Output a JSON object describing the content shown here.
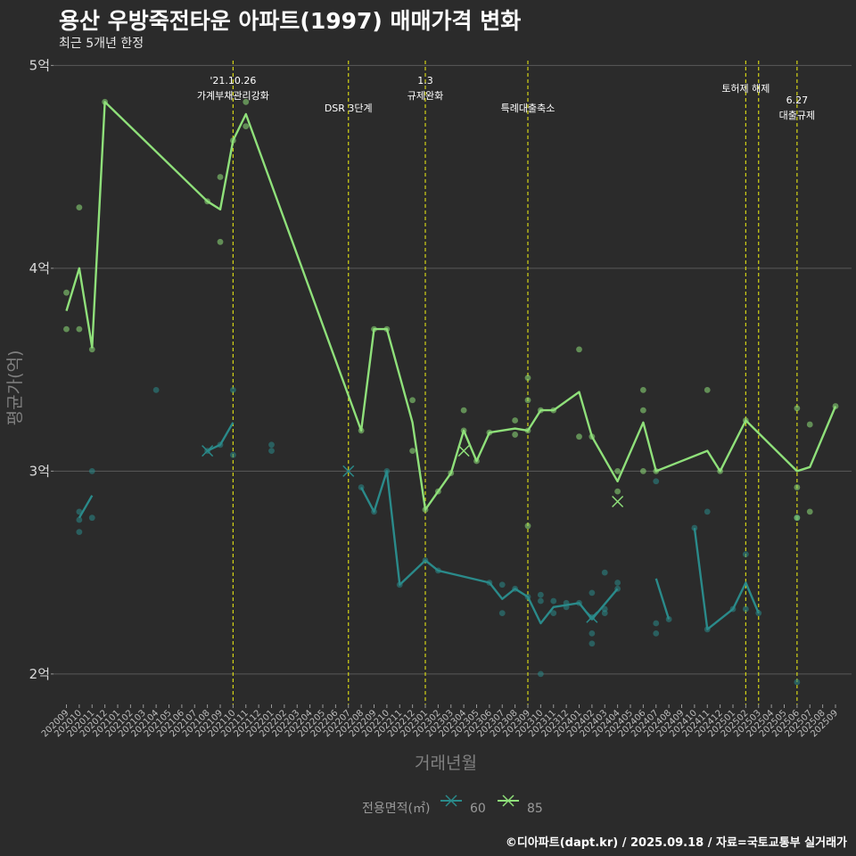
{
  "header": {
    "title": "용산 우방죽전타운 아파트(1997) 매매가격 변화",
    "subtitle": "최근 5개년 한정"
  },
  "footer": {
    "caption": "©디아파트(dapt.kr) / 2025.09.18 / 자료=국토교통부 실거래가"
  },
  "colors": {
    "background": "#2b2b2b",
    "grid": "#5a5a5a",
    "vline": "#d4d416",
    "s60": "#2a8a8a",
    "s85": "#8fe07a"
  },
  "chart_data": {
    "type": "line",
    "xlabel": "거래년월",
    "ylabel": "평균가(억)",
    "ylim": [
      1.85,
      5.05
    ],
    "y_ticks": [
      {
        "value": 2,
        "label": "2억"
      },
      {
        "value": 3,
        "label": "3억"
      },
      {
        "value": 4,
        "label": "4억"
      },
      {
        "value": 5,
        "label": "5억"
      }
    ],
    "x_start": "202009",
    "x_end": "202509",
    "categories": [
      "202009",
      "202010",
      "202011",
      "202012",
      "202101",
      "202102",
      "202103",
      "202104",
      "202105",
      "202106",
      "202107",
      "202108",
      "202109",
      "202110",
      "202111",
      "202112",
      "202201",
      "202202",
      "202203",
      "202204",
      "202205",
      "202206",
      "202207",
      "202208",
      "202209",
      "202210",
      "202211",
      "202212",
      "202301",
      "202302",
      "202303",
      "202304",
      "202305",
      "202306",
      "202307",
      "202308",
      "202309",
      "202310",
      "202311",
      "202312",
      "202401",
      "202402",
      "202403",
      "202404",
      "202405",
      "202406",
      "202407",
      "202408",
      "202409",
      "202410",
      "202411",
      "202412",
      "202501",
      "202502",
      "202503",
      "202504",
      "202505",
      "202506",
      "202507",
      "202508",
      "202509"
    ],
    "legend": {
      "title": "전용면적(㎡)",
      "entries": [
        "60",
        "85"
      ]
    },
    "annotations": [
      {
        "month": "202110",
        "lines": [
          "'21.10.26",
          "가계부채관리강화"
        ],
        "pos": "top"
      },
      {
        "month": "202207",
        "lines": [
          "DSR 3단계"
        ],
        "pos": "mid"
      },
      {
        "month": "202301",
        "lines": [
          "1.3",
          "규제완화"
        ],
        "pos": "top"
      },
      {
        "month": "202309",
        "lines": [
          "특례대출축소"
        ],
        "pos": "mid"
      },
      {
        "month": "202502",
        "lines": [
          "토허제 해제"
        ],
        "pos": "top2"
      },
      {
        "month": "202503",
        "lines": [],
        "pos": "none"
      },
      {
        "month": "202506",
        "lines": [
          "6.27",
          "대출규제"
        ],
        "pos": "low"
      }
    ],
    "series": [
      {
        "name": "60",
        "segments": [
          [
            [
              "202010",
              2.77
            ],
            [
              "202011",
              2.88
            ]
          ],
          [
            [
              "202108",
              3.1
            ],
            [
              "202109",
              3.13
            ],
            [
              "202110",
              3.24
            ]
          ],
          [
            [
              "202208",
              2.92
            ],
            [
              "202209",
              2.8
            ],
            [
              "202210",
              3.0
            ],
            [
              "202211",
              2.44
            ],
            [
              "202301",
              2.56
            ],
            [
              "202302",
              2.51
            ],
            [
              "202306",
              2.45
            ],
            [
              "202307",
              2.37
            ],
            [
              "202308",
              2.42
            ],
            [
              "202309",
              2.38
            ],
            [
              "202310",
              2.25
            ],
            [
              "202311",
              2.33
            ],
            [
              "202401",
              2.35
            ],
            [
              "202402",
              2.27
            ],
            [
              "202404",
              2.42
            ]
          ],
          [
            [
              "202407",
              2.47
            ],
            [
              "202408",
              2.27
            ]
          ],
          [
            [
              "202410",
              2.72
            ],
            [
              "202411",
              2.22
            ],
            [
              "202501",
              2.32
            ],
            [
              "202502",
              2.45
            ],
            [
              "202503",
              2.3
            ]
          ]
        ],
        "points": [
          [
            "202010",
            2.8
          ],
          [
            "202010",
            2.76
          ],
          [
            "202010",
            2.7
          ],
          [
            "202011",
            3.0
          ],
          [
            "202011",
            2.77
          ],
          [
            "202104",
            3.4
          ],
          [
            "202108",
            3.1
          ],
          [
            "202109",
            3.13
          ],
          [
            "202110",
            3.4
          ],
          [
            "202110",
            3.08
          ],
          [
            "202201",
            3.1
          ],
          [
            "202201",
            3.13
          ],
          [
            "202208",
            2.92
          ],
          [
            "202209",
            2.8
          ],
          [
            "202210",
            3.0
          ],
          [
            "202211",
            2.44
          ],
          [
            "202301",
            2.56
          ],
          [
            "202302",
            2.51
          ],
          [
            "202306",
            2.45
          ],
          [
            "202307",
            2.44
          ],
          [
            "202307",
            2.3
          ],
          [
            "202308",
            2.42
          ],
          [
            "202309",
            2.38
          ],
          [
            "202310",
            2.39
          ],
          [
            "202310",
            2.36
          ],
          [
            "202310",
            2.0
          ],
          [
            "202311",
            2.36
          ],
          [
            "202311",
            2.3
          ],
          [
            "202312",
            2.35
          ],
          [
            "202312",
            2.33
          ],
          [
            "202401",
            2.35
          ],
          [
            "202402",
            2.4
          ],
          [
            "202402",
            2.28
          ],
          [
            "202402",
            2.2
          ],
          [
            "202402",
            2.15
          ],
          [
            "202403",
            2.5
          ],
          [
            "202403",
            2.32
          ],
          [
            "202403",
            2.3
          ],
          [
            "202404",
            2.45
          ],
          [
            "202404",
            2.42
          ],
          [
            "202407",
            2.25
          ],
          [
            "202407",
            2.2
          ],
          [
            "202407",
            2.95
          ],
          [
            "202408",
            2.27
          ],
          [
            "202410",
            2.72
          ],
          [
            "202411",
            2.22
          ],
          [
            "202411",
            2.8
          ],
          [
            "202501",
            2.32
          ],
          [
            "202502",
            2.59
          ],
          [
            "202502",
            2.32
          ],
          [
            "202503",
            2.3
          ],
          [
            "202506",
            1.96
          ],
          [
            "202506",
            2.77
          ]
        ],
        "crosses": [
          [
            "202108",
            3.1
          ],
          [
            "202207",
            3.0
          ],
          [
            "202402",
            2.28
          ]
        ]
      },
      {
        "name": "85",
        "segments": [
          [
            [
              "202009",
              3.79
            ],
            [
              "202010",
              4.0
            ],
            [
              "202011",
              3.61
            ],
            [
              "202012",
              4.82
            ],
            [
              "202108",
              4.33
            ],
            [
              "202109",
              4.29
            ],
            [
              "202110",
              4.63
            ],
            [
              "202111",
              4.76
            ],
            [
              "202208",
              3.2
            ],
            [
              "202209",
              3.7
            ],
            [
              "202210",
              3.7
            ],
            [
              "202212",
              3.24
            ],
            [
              "202301",
              2.81
            ],
            [
              "202302",
              2.9
            ],
            [
              "202303",
              2.99
            ],
            [
              "202304",
              3.2
            ],
            [
              "202305",
              3.05
            ],
            [
              "202306",
              3.19
            ],
            [
              "202308",
              3.21
            ],
            [
              "202309",
              3.2
            ],
            [
              "202310",
              3.3
            ],
            [
              "202311",
              3.3
            ],
            [
              "202401",
              3.39
            ],
            [
              "202402",
              3.17
            ],
            [
              "202404",
              2.95
            ],
            [
              "202406",
              3.24
            ],
            [
              "202407",
              3.0
            ],
            [
              "202411",
              3.1
            ],
            [
              "202412",
              3.0
            ],
            [
              "202502",
              3.25
            ],
            [
              "202506",
              3.0
            ],
            [
              "202507",
              3.02
            ],
            [
              "202509",
              3.32
            ]
          ]
        ],
        "points": [
          [
            "202009",
            3.88
          ],
          [
            "202009",
            3.7
          ],
          [
            "202010",
            4.3
          ],
          [
            "202010",
            3.7
          ],
          [
            "202011",
            3.6
          ],
          [
            "202012",
            4.82
          ],
          [
            "202108",
            4.33
          ],
          [
            "202109",
            4.45
          ],
          [
            "202109",
            4.13
          ],
          [
            "202110",
            4.63
          ],
          [
            "202111",
            4.82
          ],
          [
            "202111",
            4.7
          ],
          [
            "202208",
            3.2
          ],
          [
            "202209",
            3.7
          ],
          [
            "202210",
            3.7
          ],
          [
            "202212",
            3.35
          ],
          [
            "202212",
            3.1
          ],
          [
            "202301",
            2.81
          ],
          [
            "202302",
            2.9
          ],
          [
            "202303",
            2.99
          ],
          [
            "202304",
            3.3
          ],
          [
            "202304",
            3.2
          ],
          [
            "202305",
            3.05
          ],
          [
            "202306",
            3.19
          ],
          [
            "202308",
            3.25
          ],
          [
            "202308",
            3.18
          ],
          [
            "202309",
            3.46
          ],
          [
            "202309",
            3.35
          ],
          [
            "202309",
            3.2
          ],
          [
            "202309",
            2.73
          ],
          [
            "202310",
            3.3
          ],
          [
            "202311",
            3.3
          ],
          [
            "202401",
            3.6
          ],
          [
            "202401",
            3.17
          ],
          [
            "202402",
            3.17
          ],
          [
            "202404",
            3.0
          ],
          [
            "202404",
            2.9
          ],
          [
            "202406",
            3.4
          ],
          [
            "202406",
            3.3
          ],
          [
            "202406",
            3.0
          ],
          [
            "202407",
            3.0
          ],
          [
            "202411",
            3.4
          ],
          [
            "202412",
            3.0
          ],
          [
            "202502",
            3.25
          ],
          [
            "202506",
            3.31
          ],
          [
            "202506",
            2.92
          ],
          [
            "202506",
            2.77
          ],
          [
            "202507",
            3.23
          ],
          [
            "202507",
            2.8
          ],
          [
            "202509",
            3.32
          ]
        ],
        "crosses": [
          [
            "202304",
            3.1
          ],
          [
            "202404",
            2.85
          ]
        ]
      }
    ]
  }
}
